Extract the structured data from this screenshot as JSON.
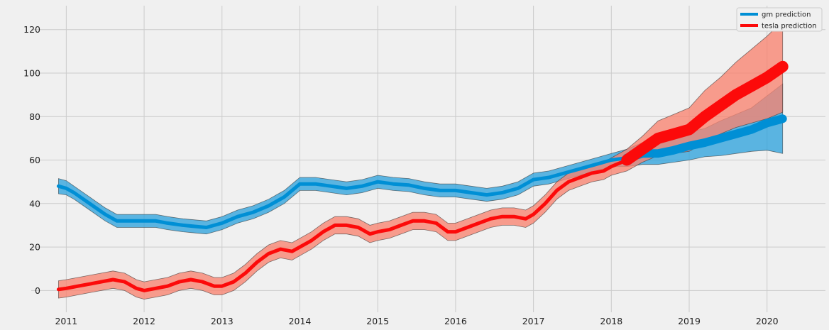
{
  "chart_data": {
    "type": "line",
    "xlim": [
      2010.55,
      2020.75
    ],
    "ylim": [
      -10,
      131
    ],
    "grid": true,
    "legend_position": "top-right",
    "x_ticks": [
      {
        "value": 2011,
        "label": "2011"
      },
      {
        "value": 2012,
        "label": "2012"
      },
      {
        "value": 2013,
        "label": "2013"
      },
      {
        "value": 2014,
        "label": "2014"
      },
      {
        "value": 2015,
        "label": "2015"
      },
      {
        "value": 2016,
        "label": "2016"
      },
      {
        "value": 2017,
        "label": "2017"
      },
      {
        "value": 2018,
        "label": "2018"
      },
      {
        "value": 2019,
        "label": "2019"
      },
      {
        "value": 2020,
        "label": "2020"
      }
    ],
    "y_ticks": [
      {
        "value": 0,
        "label": "0"
      },
      {
        "value": 20,
        "label": "20"
      },
      {
        "value": 40,
        "label": "40"
      },
      {
        "value": 60,
        "label": "60"
      },
      {
        "value": 80,
        "label": "80"
      },
      {
        "value": 100,
        "label": "100"
      },
      {
        "value": 120,
        "label": "120"
      }
    ],
    "series": [
      {
        "name": "gm prediction",
        "color": "#008fd5",
        "band_color": "#2fa3dc",
        "x": [
          2010.9,
          2011.0,
          2011.1,
          2011.3,
          2011.5,
          2011.65,
          2011.8,
          2012.0,
          2012.15,
          2012.3,
          2012.5,
          2012.65,
          2012.8,
          2013.0,
          2013.2,
          2013.4,
          2013.6,
          2013.8,
          2014.0,
          2014.2,
          2014.4,
          2014.6,
          2014.8,
          2015.0,
          2015.2,
          2015.4,
          2015.6,
          2015.8,
          2016.0,
          2016.2,
          2016.4,
          2016.6,
          2016.8,
          2017.0,
          2017.2,
          2017.4,
          2017.6,
          2017.8,
          2018.0,
          2018.2,
          2018.4,
          2018.6,
          2018.8,
          2019.0,
          2019.2,
          2019.4,
          2019.6,
          2019.8,
          2020.0,
          2020.2
        ],
        "y": [
          48,
          47,
          45,
          40,
          35,
          32,
          32,
          32,
          32,
          31,
          30,
          29.5,
          29,
          31,
          34,
          36,
          39,
          43,
          49,
          49,
          48,
          47,
          48,
          50,
          49,
          48.5,
          47,
          46,
          46,
          45,
          44,
          45,
          47,
          51,
          52,
          54,
          56,
          58,
          60,
          61,
          63,
          63,
          64.5,
          66.5,
          68,
          70,
          72,
          74,
          77,
          79
        ],
        "lower": [
          44.5,
          44,
          42,
          37,
          32,
          29,
          29,
          29,
          29,
          28,
          27,
          26.5,
          26,
          28,
          31,
          33,
          36,
          40,
          46,
          46,
          45,
          44,
          45,
          47,
          46,
          45.5,
          44,
          43,
          43,
          42,
          41,
          42,
          44,
          48,
          49,
          51,
          53,
          55,
          57,
          57,
          58,
          58,
          59,
          60,
          61.5,
          62,
          63,
          64,
          64.5,
          63
        ],
        "upper": [
          51.5,
          50.5,
          48,
          43,
          38,
          35,
          35,
          35,
          35,
          34,
          33,
          32.5,
          32,
          34,
          37,
          39,
          42,
          46,
          52,
          52,
          51,
          50,
          51,
          53,
          52,
          51.5,
          50,
          49,
          49,
          48,
          47,
          48,
          50,
          54,
          55,
          57,
          59,
          61,
          63,
          65,
          68,
          68,
          70,
          73,
          74.5,
          78,
          81,
          84,
          89.5,
          95
        ]
      },
      {
        "name": "tesla prediction",
        "color": "#fc0a0a",
        "band_color": "#f8836f",
        "x": [
          2010.9,
          2011.0,
          2011.15,
          2011.3,
          2011.45,
          2011.6,
          2011.75,
          2011.9,
          2012.0,
          2012.15,
          2012.3,
          2012.45,
          2012.6,
          2012.75,
          2012.9,
          2013.0,
          2013.15,
          2013.3,
          2013.45,
          2013.6,
          2013.75,
          2013.9,
          2014.0,
          2014.15,
          2014.3,
          2014.45,
          2014.6,
          2014.75,
          2014.9,
          2015.0,
          2015.15,
          2015.3,
          2015.45,
          2015.6,
          2015.75,
          2015.9,
          2016.0,
          2016.15,
          2016.3,
          2016.45,
          2016.6,
          2016.75,
          2016.9,
          2017.0,
          2017.15,
          2017.3,
          2017.45,
          2017.6,
          2017.75,
          2017.9,
          2018.0,
          2018.2,
          2018.4,
          2018.6,
          2018.8,
          2019.0,
          2019.2,
          2019.4,
          2019.6,
          2019.8,
          2020.0,
          2020.2
        ],
        "y": [
          0.5,
          1,
          2,
          3,
          4,
          5,
          4,
          1,
          0,
          1,
          2,
          4,
          5,
          4,
          2,
          2,
          4,
          8,
          13,
          17,
          19,
          18,
          20,
          23,
          27,
          30,
          30,
          29,
          26,
          27,
          28,
          30,
          32,
          32,
          31,
          27,
          27,
          29,
          31,
          33,
          34,
          34,
          33,
          35,
          40,
          46,
          50,
          52,
          54,
          55,
          57,
          60,
          65,
          70,
          72,
          74,
          80,
          85,
          90,
          94,
          98,
          103
        ],
        "lower": [
          -3.5,
          -3,
          -2,
          -1,
          0,
          1,
          0,
          -3,
          -4,
          -3,
          -2,
          0,
          1,
          0,
          -2,
          -2,
          0,
          4,
          9,
          13,
          15,
          14,
          16,
          19,
          23,
          26,
          26,
          25,
          22,
          23,
          24,
          26,
          28,
          28,
          27,
          23,
          23,
          25,
          27,
          29,
          30,
          30,
          29,
          31,
          36,
          42,
          46,
          48,
          50,
          51,
          53,
          55,
          59,
          62,
          63,
          64,
          68,
          72,
          75,
          77,
          79,
          82
        ],
        "upper": [
          4.5,
          5,
          6,
          7,
          8,
          9,
          8,
          5,
          4,
          5,
          6,
          8,
          9,
          8,
          6,
          6,
          8,
          12,
          17,
          21,
          23,
          22,
          24,
          27,
          31,
          34,
          34,
          33,
          30,
          31,
          32,
          34,
          36,
          36,
          35,
          31,
          31,
          33,
          35,
          37,
          38,
          38,
          37,
          39,
          44,
          50,
          54,
          56,
          58,
          59,
          61,
          65,
          71,
          78,
          81,
          84,
          92,
          98,
          105,
          111,
          117,
          124
        ]
      }
    ]
  }
}
